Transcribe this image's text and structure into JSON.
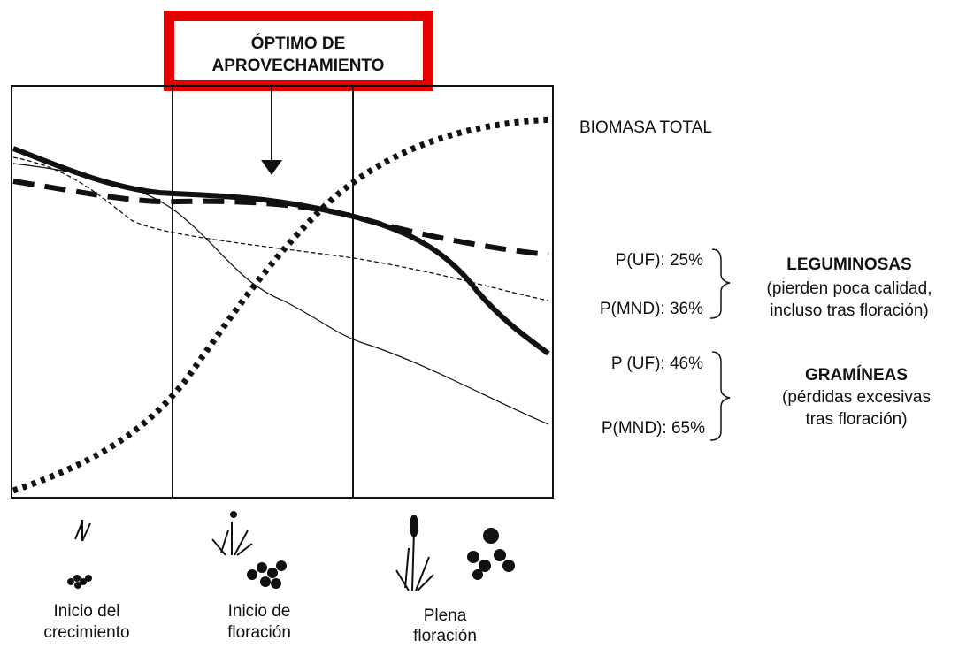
{
  "header": {
    "title_lines": [
      "ÓPTIMO DE",
      "APROVECHAMIENTO"
    ]
  },
  "curves": {
    "biomass_label": "BIOMASA TOTAL"
  },
  "leguminosas": {
    "p_uf": "P(UF): 25%",
    "p_mnd": "P(MND): 36%",
    "title": "LEGUMINOSAS",
    "desc_lines": [
      "(pierden poca calidad,",
      "incluso tras floración)"
    ]
  },
  "gramineas": {
    "p_uf": "P (UF): 46%",
    "p_mnd": "P(MND): 65%",
    "title": "GRAMÍNEAS",
    "desc_lines": [
      "(pérdidas excesivas",
      "tras floración)"
    ]
  },
  "stages": [
    {
      "lines": [
        "Inicio del",
        "crecimiento"
      ]
    },
    {
      "lines": [
        "Inicio de",
        "floración"
      ]
    },
    {
      "lines": [
        "Plena",
        "floración"
      ]
    }
  ]
}
